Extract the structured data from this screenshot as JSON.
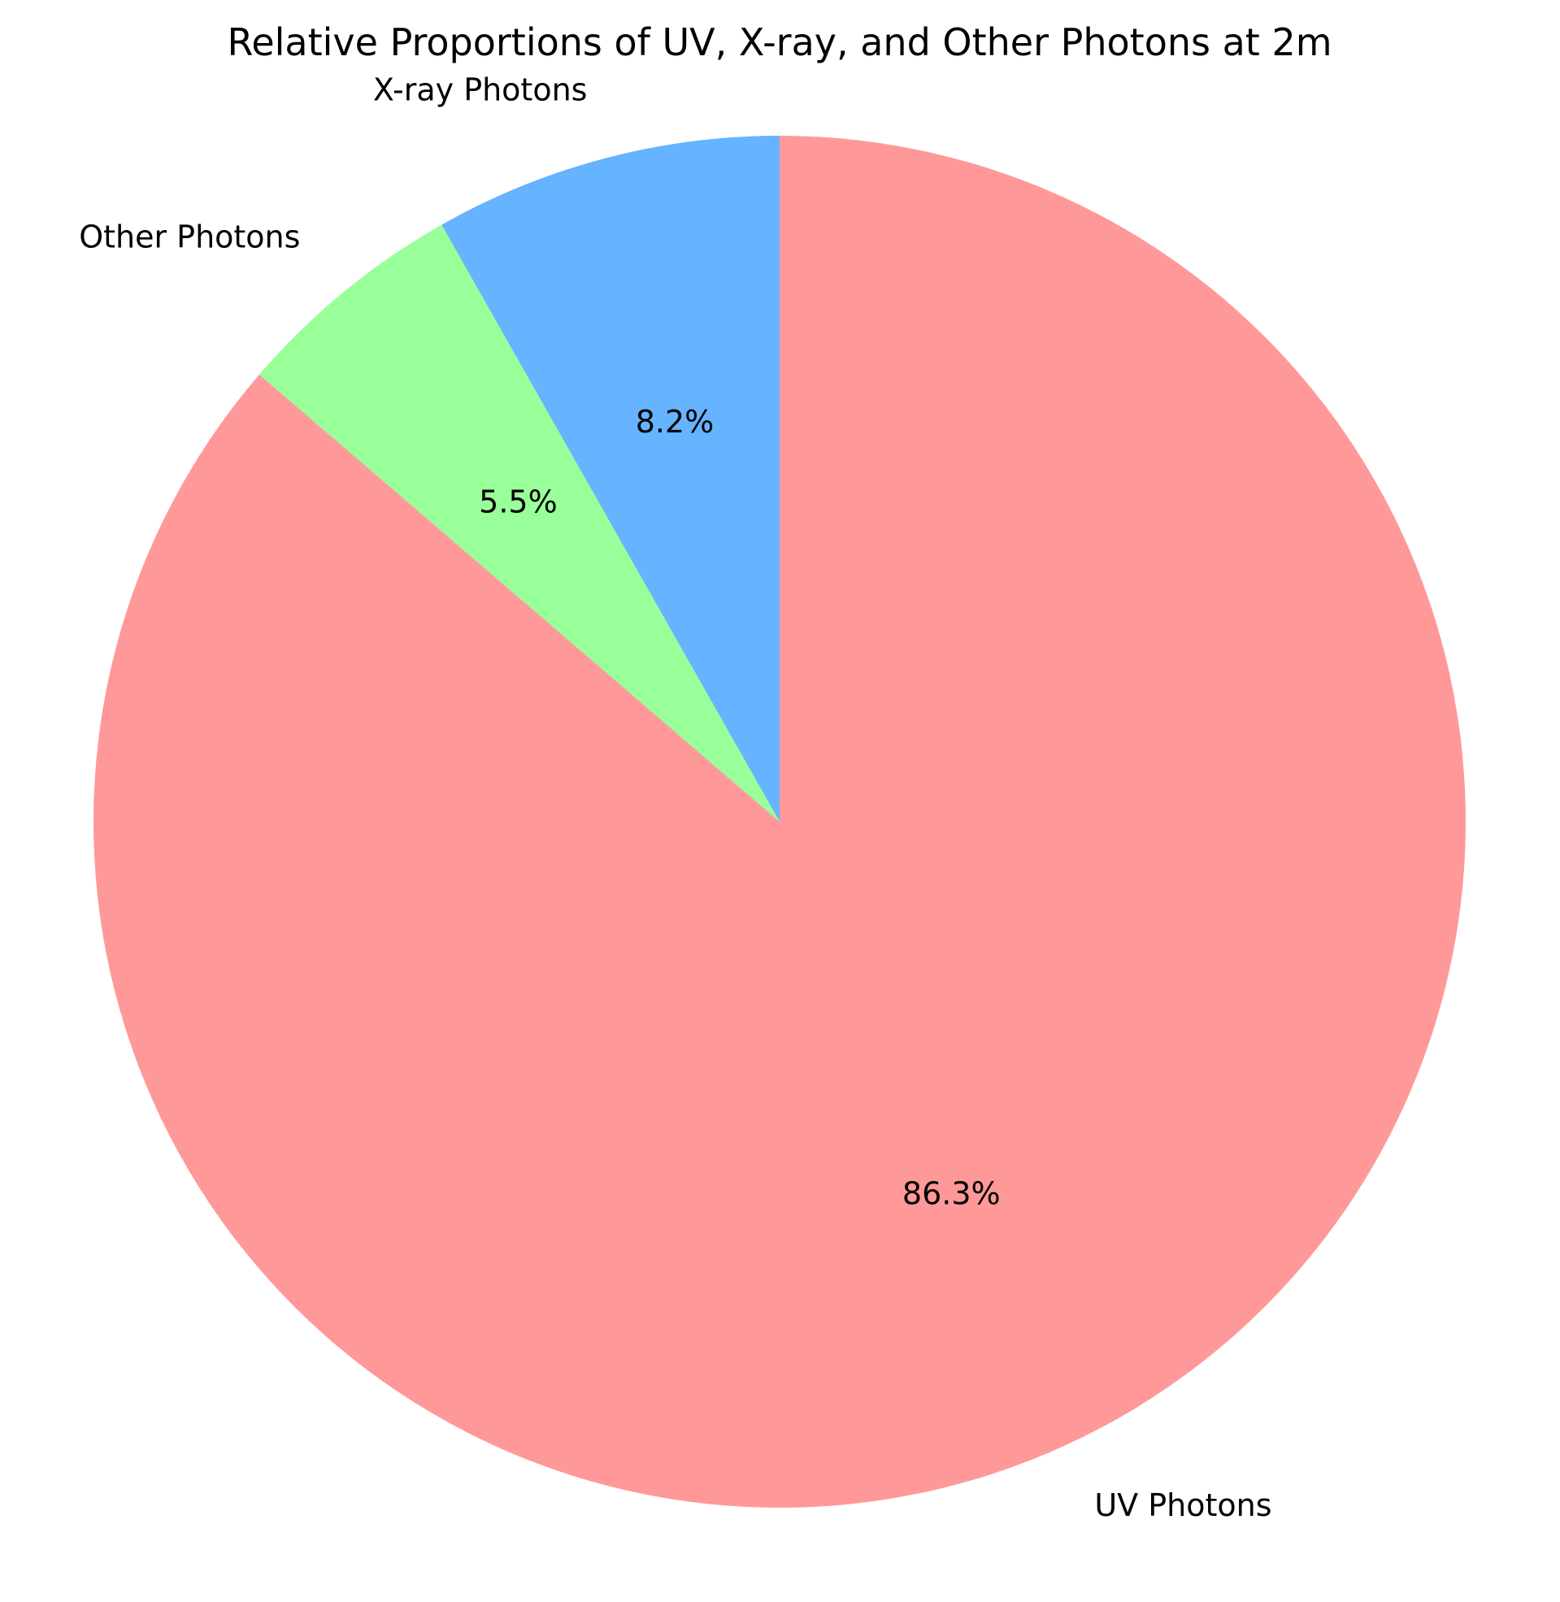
{
  "chart_data": {
    "type": "pie",
    "title": "Relative Proportions of UV, X-ray, and Other Photons at 2m",
    "start_angle_deg": 90,
    "direction": "counterclockwise",
    "slices": [
      {
        "label": "X-ray Photons",
        "value": 8.2,
        "pct_label": "8.2%",
        "color": "#66b3ff"
      },
      {
        "label": "Other Photons",
        "value": 5.5,
        "pct_label": "5.5%",
        "color": "#99ff99"
      },
      {
        "label": "UV Photons",
        "value": 86.3,
        "pct_label": "86.3%",
        "color": "#ff9999"
      }
    ]
  }
}
